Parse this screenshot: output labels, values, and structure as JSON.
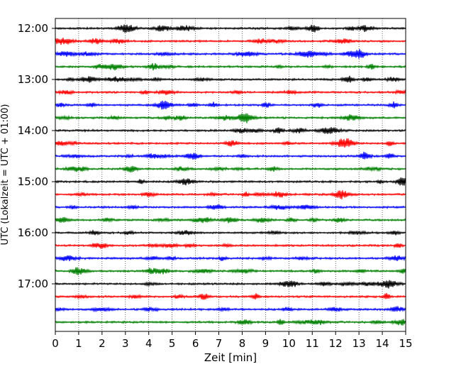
{
  "chart_data": {
    "type": "line",
    "title": "",
    "xlabel": "Zeit  [min]",
    "ylabel": "UTC (Lokalzeit = UTC + 01:00)",
    "xlim": [
      0,
      15
    ],
    "x_ticks": [
      0,
      1,
      2,
      3,
      4,
      5,
      6,
      7,
      8,
      9,
      10,
      11,
      12,
      13,
      14,
      15
    ],
    "x_tick_labels": [
      "0",
      "1",
      "2",
      "3",
      "4",
      "5",
      "6",
      "7",
      "8",
      "9",
      "10",
      "11",
      "12",
      "13",
      "14",
      "15"
    ],
    "y_tick_labels": [
      "12:00",
      "13:00",
      "14:00",
      "15:00",
      "16:00",
      "17:00"
    ],
    "y_tick_traces": [
      0,
      4,
      8,
      12,
      16,
      20
    ],
    "traces": [
      "12:00",
      "12:15",
      "12:30",
      "12:45",
      "13:00",
      "13:15",
      "13:30",
      "13:45",
      "14:00",
      "14:15",
      "14:30",
      "14:45",
      "15:00",
      "15:15",
      "15:30",
      "15:45",
      "16:00",
      "16:15",
      "16:30",
      "16:45",
      "17:00",
      "17:15",
      "17:30",
      "17:45"
    ],
    "trace_color_cycle": [
      "#000000",
      "#ff0000",
      "#0000ff",
      "#008000"
    ],
    "grid": "vertical dotted",
    "legend": "none"
  }
}
